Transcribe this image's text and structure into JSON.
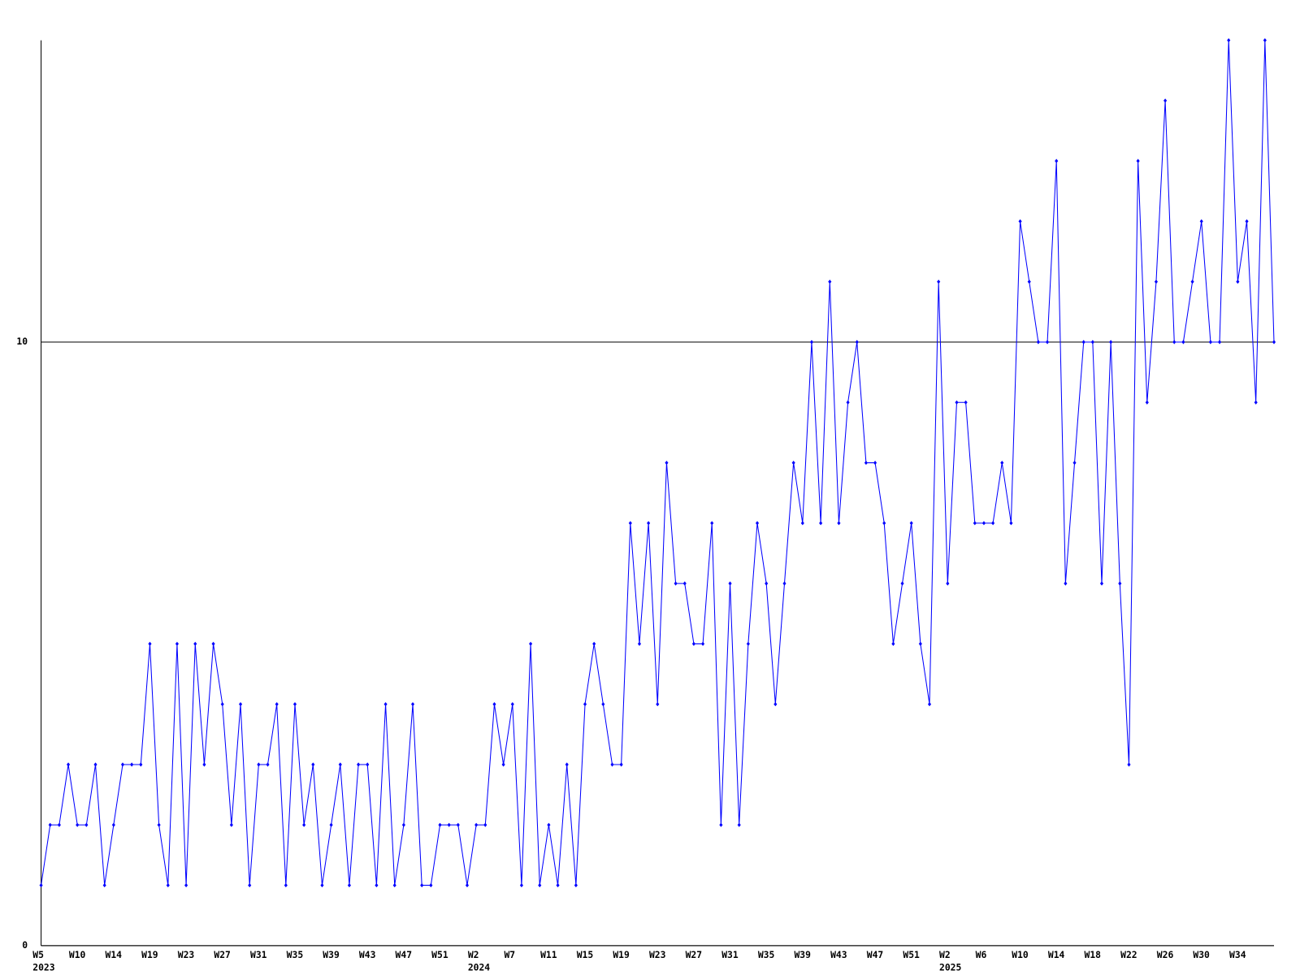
{
  "chart_data": {
    "type": "line",
    "color": "#0000ff",
    "grid": true,
    "ylim": [
      0,
      15
    ],
    "yticks": [
      0,
      10
    ],
    "categories": [
      "W5",
      null,
      null,
      null,
      "W10",
      null,
      null,
      null,
      "W14",
      null,
      null,
      null,
      "W19",
      null,
      null,
      null,
      "W23",
      null,
      null,
      null,
      "W27",
      null,
      null,
      null,
      "W31",
      null,
      null,
      null,
      "W35",
      null,
      null,
      null,
      "W39",
      null,
      null,
      null,
      "W43",
      null,
      null,
      null,
      "W47",
      null,
      null,
      null,
      "W51",
      null,
      null,
      null,
      "W2",
      null,
      null,
      null,
      "W7",
      null,
      null,
      null,
      "W11",
      null,
      null,
      null,
      "W15",
      null,
      null,
      null,
      "W19",
      null,
      null,
      null,
      "W23",
      null,
      null,
      null,
      "W27",
      null,
      null,
      null,
      "W31",
      null,
      null,
      null,
      "W35",
      null,
      null,
      null,
      "W39",
      null,
      null,
      null,
      "W43",
      null,
      null,
      null,
      "W47",
      null,
      null,
      null,
      "W51",
      null,
      null,
      null,
      "W2",
      null,
      null,
      null,
      "W6",
      null,
      null,
      null,
      "W10",
      null,
      null,
      null,
      "W14",
      null,
      null,
      null,
      "W18",
      null,
      null,
      null,
      "W22",
      null,
      null,
      null,
      "W26",
      null,
      null,
      null,
      "W30",
      null,
      null,
      null,
      "W34",
      null,
      null,
      null,
      null
    ],
    "category_years": [
      "2023",
      null,
      null,
      null,
      null,
      null,
      null,
      null,
      null,
      null,
      null,
      null,
      null,
      null,
      null,
      null,
      null,
      null,
      null,
      null,
      null,
      null,
      null,
      null,
      null,
      null,
      null,
      null,
      null,
      null,
      null,
      null,
      null,
      null,
      null,
      null,
      null,
      null,
      null,
      null,
      null,
      null,
      null,
      null,
      null,
      null,
      null,
      null,
      "2024",
      null,
      null,
      null,
      null,
      null,
      null,
      null,
      null,
      null,
      null,
      null,
      null,
      null,
      null,
      null,
      null,
      null,
      null,
      null,
      null,
      null,
      null,
      null,
      null,
      null,
      null,
      null,
      null,
      null,
      null,
      null,
      null,
      null,
      null,
      null,
      null,
      null,
      null,
      null,
      null,
      null,
      null,
      null,
      null,
      null,
      null,
      null,
      null,
      null,
      null,
      null,
      "2025",
      null,
      null,
      null,
      null,
      null,
      null,
      null,
      null,
      null,
      null,
      null,
      null,
      null,
      null,
      null,
      null,
      null,
      null,
      null,
      null,
      null,
      null,
      null,
      null,
      null,
      null,
      null,
      null,
      null,
      null,
      null,
      null,
      null,
      null,
      null,
      null
    ],
    "values": [
      1,
      2,
      2,
      3,
      2,
      2,
      3,
      1,
      2,
      3,
      3,
      3,
      5,
      2,
      1,
      5,
      1,
      5,
      3,
      5,
      4,
      2,
      4,
      1,
      3,
      3,
      4,
      1,
      4,
      2,
      3,
      1,
      2,
      3,
      1,
      3,
      3,
      1,
      4,
      1,
      2,
      4,
      1,
      1,
      2,
      2,
      2,
      1,
      2,
      2,
      4,
      3,
      4,
      1,
      5,
      1,
      2,
      1,
      3,
      1,
      4,
      5,
      4,
      3,
      3,
      7,
      5,
      7,
      4,
      8,
      6,
      6,
      5,
      5,
      7,
      2,
      6,
      2,
      5,
      7,
      6,
      4,
      6,
      8,
      7,
      10,
      7,
      11,
      7,
      9,
      10,
      8,
      8,
      7,
      5,
      6,
      7,
      5,
      4,
      11,
      6,
      9,
      9,
      7,
      7,
      7,
      8,
      7,
      12,
      11,
      10,
      10,
      13,
      6,
      8,
      10,
      10,
      6,
      10,
      6,
      3,
      13,
      9,
      11,
      14,
      10,
      10,
      11,
      12,
      10,
      10,
      15,
      11,
      12,
      9,
      15,
      10
    ]
  }
}
